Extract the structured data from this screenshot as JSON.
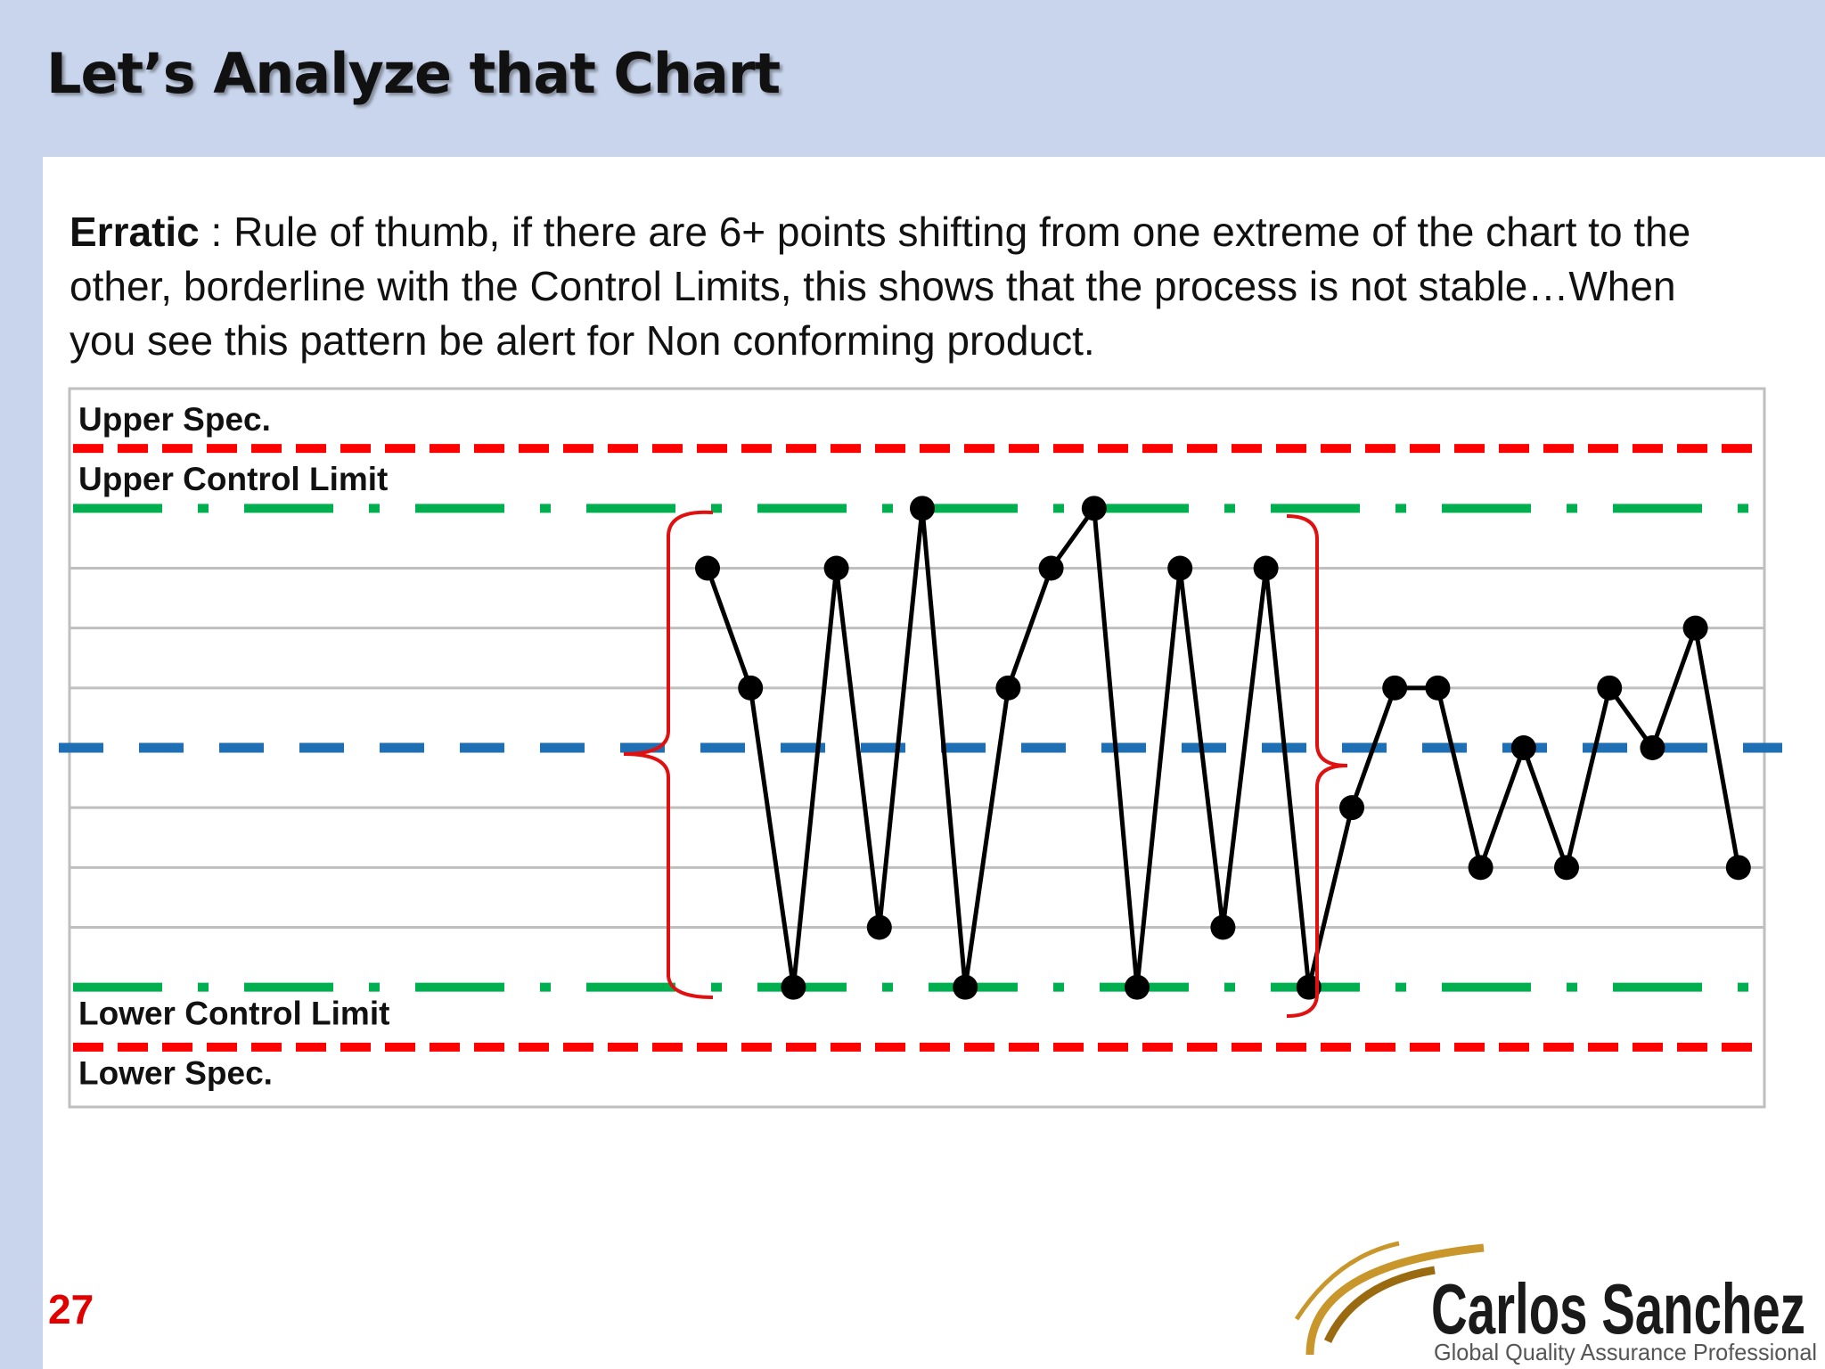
{
  "title": "Let’s Analyze that Chart",
  "body": {
    "term": "Erratic",
    "text": " : Rule of thumb, if there are 6+ points shifting from one extreme of the chart to the other, borderline with the Control Limits, this shows that the process is not stable…When you see this pattern be alert for Non conforming product."
  },
  "chart_data": {
    "type": "line",
    "color": "#000000",
    "values": [
      3,
      1,
      -4,
      3,
      -3,
      4,
      -4,
      1,
      3,
      4,
      -4,
      3,
      -3,
      3,
      -4,
      -1,
      1,
      1,
      -2,
      0,
      -2,
      1,
      0,
      2,
      -2
    ],
    "ylim": [
      -6,
      6
    ],
    "grid_lines": [
      -3,
      -2,
      -1,
      1,
      2,
      3
    ],
    "limits": [
      {
        "label": "Upper Spec.",
        "value": 5,
        "color": "#ff0000",
        "style": "dashed"
      },
      {
        "label": "Upper Control Limit",
        "value": 4,
        "color": "#00b050",
        "style": "dash-dot"
      },
      {
        "label": "Lower Control Limit",
        "value": -4,
        "color": "#00b050",
        "style": "dash-dot"
      },
      {
        "label": "Lower Spec.",
        "value": -5,
        "color": "#ff0000",
        "style": "dashed"
      }
    ],
    "center_line": {
      "value": 0,
      "color": "#1f6fb4"
    }
  },
  "page_number": "27",
  "logo": {
    "name": "Carlos Sanchez",
    "tagline": "Global Quality Assurance Professional"
  }
}
